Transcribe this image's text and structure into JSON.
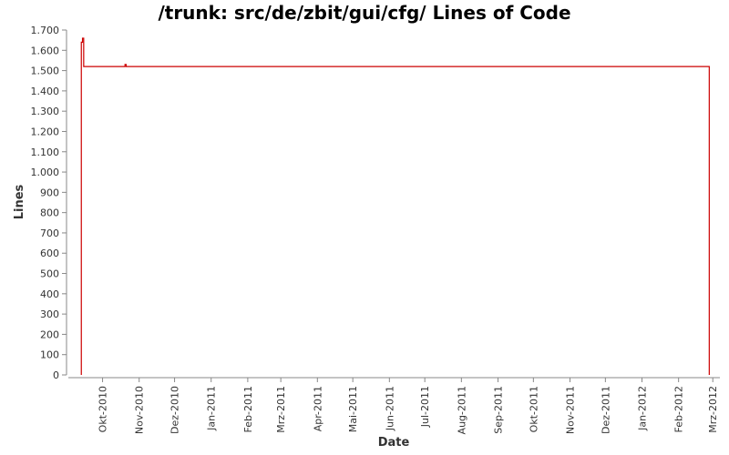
{
  "chart_data": {
    "type": "line",
    "title": "/trunk: src/de/zbit/gui/cfg/ Lines of Code",
    "xlabel": "Date",
    "ylabel": "Lines",
    "ylim": [
      0,
      1700
    ],
    "y_ticks": [
      0,
      100,
      200,
      300,
      400,
      500,
      600,
      700,
      800,
      900,
      1000,
      1100,
      1200,
      1300,
      1400,
      1500,
      1600,
      1700
    ],
    "y_tick_labels": [
      "0",
      "100",
      "200",
      "300",
      "400",
      "500",
      "600",
      "700",
      "800",
      "900",
      "1.000",
      "1.100",
      "1.200",
      "1.300",
      "1.400",
      "1.500",
      "1.600",
      "1.700"
    ],
    "xlim": [
      "2010-09-02",
      "2012-03-07"
    ],
    "x_ticks": [
      "2010-10-01",
      "2010-11-01",
      "2010-12-01",
      "2011-01-01",
      "2011-02-01",
      "2011-03-01",
      "2011-04-01",
      "2011-05-01",
      "2011-06-01",
      "2011-07-01",
      "2011-08-01",
      "2011-09-01",
      "2011-10-01",
      "2011-11-01",
      "2011-12-01",
      "2012-01-01",
      "2012-02-01",
      "2012-03-01"
    ],
    "x_tick_labels": [
      "Okt-2010",
      "Nov-2010",
      "Dez-2010",
      "Jan-2011",
      "Feb-2011",
      "Mrz-2011",
      "Apr-2011",
      "Mai-2011",
      "Jun-2011",
      "Jul-2011",
      "Aug-2011",
      "Sep-2011",
      "Okt-2011",
      "Nov-2011",
      "Dez-2011",
      "Jan-2012",
      "Feb-2012",
      "Mrz-2012"
    ],
    "grid": false,
    "series": [
      {
        "color": "#cc0000",
        "step": true,
        "points": [
          [
            "2010-09-13",
            0
          ],
          [
            "2010-09-13",
            1640
          ],
          [
            "2010-09-14",
            1640
          ],
          [
            "2010-09-14",
            1660
          ],
          [
            "2010-09-15",
            1660
          ],
          [
            "2010-09-15",
            1520
          ],
          [
            "2010-10-20",
            1520
          ],
          [
            "2010-10-20",
            1530
          ],
          [
            "2010-10-21",
            1530
          ],
          [
            "2010-10-21",
            1520
          ],
          [
            "2012-02-27",
            1520
          ],
          [
            "2012-02-27",
            0
          ]
        ]
      }
    ]
  }
}
